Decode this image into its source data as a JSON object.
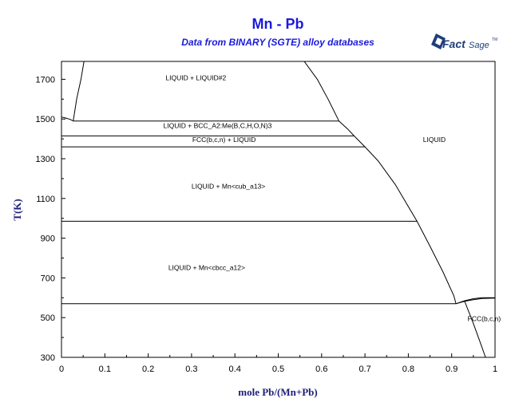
{
  "header": {
    "title": "Mn - Pb",
    "subtitle": "Data from BINARY (SGTE) alloy databases"
  },
  "logo": {
    "text_bold": "Fact",
    "text_light": "Sage",
    "mark": "TM",
    "icon": "factsage-logo-icon"
  },
  "chart_data": {
    "type": "line",
    "title": "Mn - Pb",
    "subtitle": "Data from BINARY (SGTE) alloy databases",
    "xlabel": "mole Pb/(Mn+Pb)",
    "ylabel": "T(K)",
    "xlim": [
      0,
      1
    ],
    "ylim": [
      300,
      1790
    ],
    "xticks": [
      "0",
      "0.1",
      "0.2",
      "0.3",
      "0.4",
      "0.5",
      "0.6",
      "0.7",
      "0.8",
      "0.9",
      "1"
    ],
    "xtick_values": [
      0,
      0.1,
      0.2,
      0.3,
      0.4,
      0.5,
      0.6,
      0.7,
      0.8,
      0.9,
      1
    ],
    "yticks": [
      "300",
      "500",
      "700",
      "900",
      "1100",
      "1300",
      "1500",
      "1700"
    ],
    "ytick_values": [
      300,
      500,
      700,
      900,
      1100,
      1300,
      1500,
      1700
    ],
    "grid": false,
    "series": [
      {
        "id": "miscibility-gap-left",
        "x": [
          0.052,
          0.045,
          0.035,
          0.027
        ],
        "y": [
          1790,
          1700,
          1600,
          1490
        ]
      },
      {
        "id": "miscibility-gap-left-top",
        "x": [
          0,
          0.01,
          0.02,
          0.027
        ],
        "y": [
          1510,
          1505,
          1498,
          1490
        ]
      },
      {
        "id": "miscibility-gap-right",
        "x": [
          0.56,
          0.59,
          0.615,
          0.64
        ],
        "y": [
          1790,
          1700,
          1600,
          1490
        ]
      },
      {
        "id": "liquidus",
        "x": [
          0.64,
          0.66,
          0.675,
          0.7,
          0.73,
          0.77,
          0.82,
          0.85,
          0.88,
          0.905,
          0.91
        ],
        "y": [
          1490,
          1450,
          1415,
          1360,
          1290,
          1170,
          985,
          860,
          730,
          610,
          570
        ]
      },
      {
        "id": "isotherm-1490",
        "x": [
          0.027,
          0.64
        ],
        "y": [
          1490,
          1490
        ]
      },
      {
        "id": "isotherm-1415",
        "x": [
          0,
          0.675
        ],
        "y": [
          1415,
          1415
        ]
      },
      {
        "id": "isotherm-1360",
        "x": [
          0,
          0.7
        ],
        "y": [
          1360,
          1360
        ]
      },
      {
        "id": "isotherm-985",
        "x": [
          0,
          0.82
        ],
        "y": [
          985,
          985
        ]
      },
      {
        "id": "isotherm-570",
        "x": [
          0,
          0.91
        ],
        "y": [
          570,
          570
        ]
      },
      {
        "id": "fcc-upper",
        "x": [
          0.91,
          0.93,
          0.95,
          0.97,
          1.0
        ],
        "y": [
          570,
          585,
          595,
          600,
          600
        ]
      },
      {
        "id": "fcc-lower",
        "x": [
          0.91,
          0.93,
          0.95,
          0.97,
          1.0
        ],
        "y": [
          570,
          582,
          590,
          596,
          598
        ]
      },
      {
        "id": "fcc-solvus",
        "x": [
          0.93,
          0.95,
          0.965,
          0.978
        ],
        "y": [
          582,
          470,
          380,
          300
        ]
      }
    ],
    "annotations": [
      {
        "text": "LIQUID + LIQUID#2",
        "x": 0.31,
        "y": 1695
      },
      {
        "text": "LIQUID + BCC_A2:Me(B,C,H,O,N)3",
        "x": 0.36,
        "y": 1455
      },
      {
        "text": "FCC(b,c,n) + LIQUID",
        "x": 0.375,
        "y": 1385
      },
      {
        "text": "LIQUID",
        "x": 0.86,
        "y": 1385
      },
      {
        "text": "LIQUID + Mn<cub_a13>",
        "x": 0.385,
        "y": 1150
      },
      {
        "text": "LIQUID + Mn<cbcc_a12>",
        "x": 0.335,
        "y": 740
      },
      {
        "text": "FCC(b,c,n)",
        "x": 0.975,
        "y": 482
      }
    ]
  }
}
